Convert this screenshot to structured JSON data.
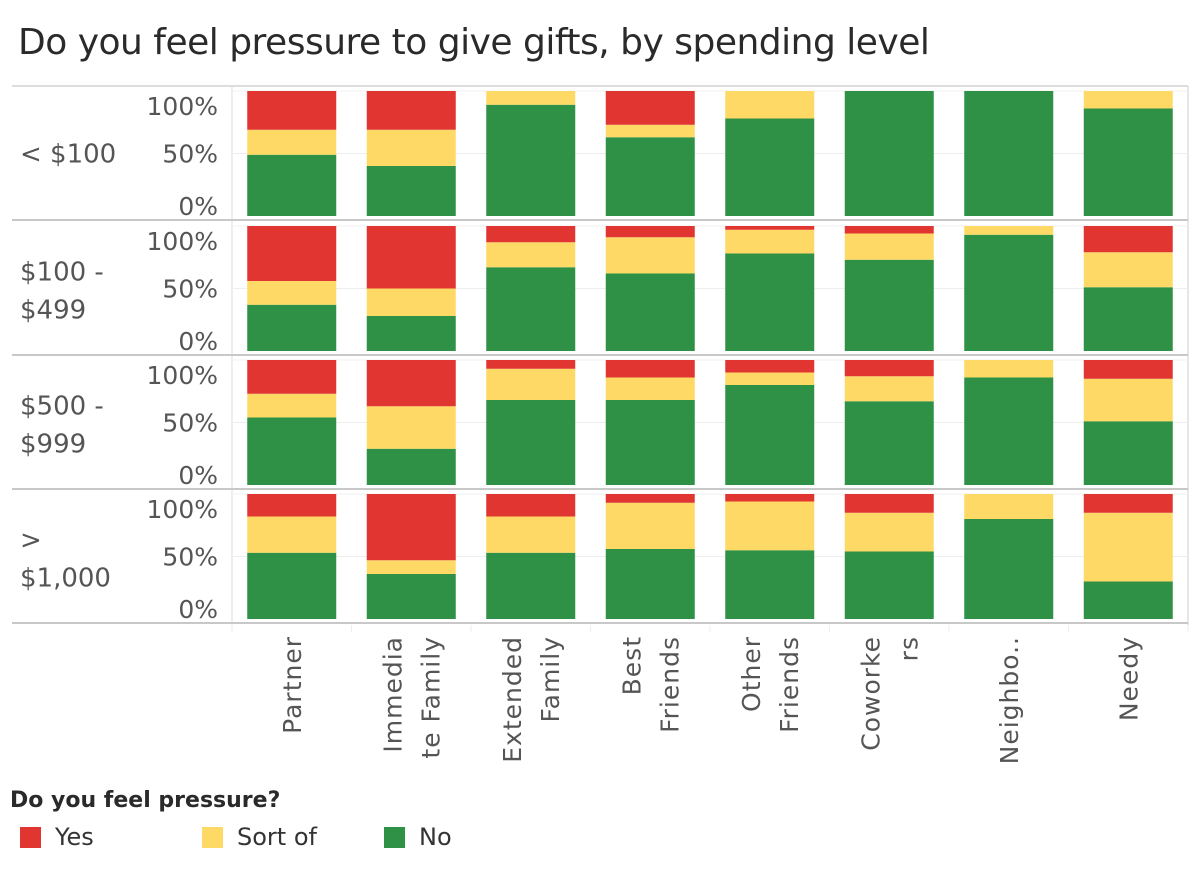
{
  "chart_data": {
    "type": "bar",
    "stacked": true,
    "normalized": true,
    "title": "Do you feel pressure to give gifts, by spending level",
    "xlabel": "",
    "ylabel": "",
    "ylim": [
      0,
      100
    ],
    "y_ticks": [
      "0%",
      "50%",
      "100%"
    ],
    "categories": [
      "Partner",
      "Immediate Family",
      "Extended Family",
      "Best Friends",
      "Other Friends",
      "Coworkers",
      "Neighbors",
      "Needy"
    ],
    "category_labels": [
      [
        "Partner"
      ],
      [
        "Immedia",
        "te Family"
      ],
      [
        "Extended",
        "Family"
      ],
      [
        "Best",
        "Friends"
      ],
      [
        "Other",
        "Friends"
      ],
      [
        "Coworke",
        "rs"
      ],
      [
        "Neighbo.."
      ],
      [
        "Needy"
      ]
    ],
    "row_labels": [
      [
        "< $100"
      ],
      [
        "$100 -",
        "$499"
      ],
      [
        "$500 -",
        "$999"
      ],
      [
        ">",
        "$1,000"
      ]
    ],
    "rows": [
      "< $100",
      "$100 - $499",
      "$500 - $999",
      "> $1,000"
    ],
    "series_order": [
      "No",
      "Sort of",
      "Yes"
    ],
    "panels": [
      {
        "row": "< $100",
        "series": [
          {
            "name": "Yes",
            "values": [
              31,
              31,
              0,
              27,
              0,
              0,
              0,
              0
            ]
          },
          {
            "name": "Sort of",
            "values": [
              20,
              29,
              11,
              10,
              22,
              0,
              0,
              14
            ]
          },
          {
            "name": "No",
            "values": [
              49,
              40,
              89,
              63,
              78,
              100,
              100,
              86
            ]
          }
        ]
      },
      {
        "row": "$100 - $499",
        "series": [
          {
            "name": "Yes",
            "values": [
              44,
              50,
              13,
              9,
              3,
              6,
              0,
              21
            ]
          },
          {
            "name": "Sort of",
            "values": [
              19,
              22,
              20,
              29,
              19,
              21,
              7,
              28
            ]
          },
          {
            "name": "No",
            "values": [
              37,
              28,
              67,
              62,
              78,
              73,
              93,
              51
            ]
          }
        ]
      },
      {
        "row": "$500 - $999",
        "series": [
          {
            "name": "Yes",
            "values": [
              27,
              37,
              7,
              14,
              10,
              13,
              0,
              15
            ]
          },
          {
            "name": "Sort of",
            "values": [
              19,
              34,
              25,
              18,
              10,
              20,
              14,
              34
            ]
          },
          {
            "name": "No",
            "values": [
              54,
              29,
              68,
              68,
              80,
              67,
              86,
              51
            ]
          }
        ]
      },
      {
        "row": "> $1,000",
        "series": [
          {
            "name": "Yes",
            "values": [
              18,
              53,
              18,
              7,
              6,
              15,
              0,
              15
            ]
          },
          {
            "name": "Sort of",
            "values": [
              29,
              11,
              29,
              37,
              39,
              31,
              20,
              55
            ]
          },
          {
            "name": "No",
            "values": [
              53,
              36,
              53,
              56,
              55,
              54,
              80,
              30
            ]
          }
        ]
      }
    ],
    "legend": {
      "title": "Do you feel pressure?",
      "position": "bottom-left",
      "items": [
        {
          "name": "Yes",
          "color": "#e03531"
        },
        {
          "name": "Sort of",
          "color": "#fed966"
        },
        {
          "name": "No",
          "color": "#2f9145"
        }
      ]
    },
    "grid": true
  },
  "colors": {
    "Yes": "#e03531",
    "Sort of": "#fed966",
    "No": "#2f9145",
    "axis_text": "#555555",
    "grid": "#eeeeee",
    "border": "#c8c8c8"
  }
}
